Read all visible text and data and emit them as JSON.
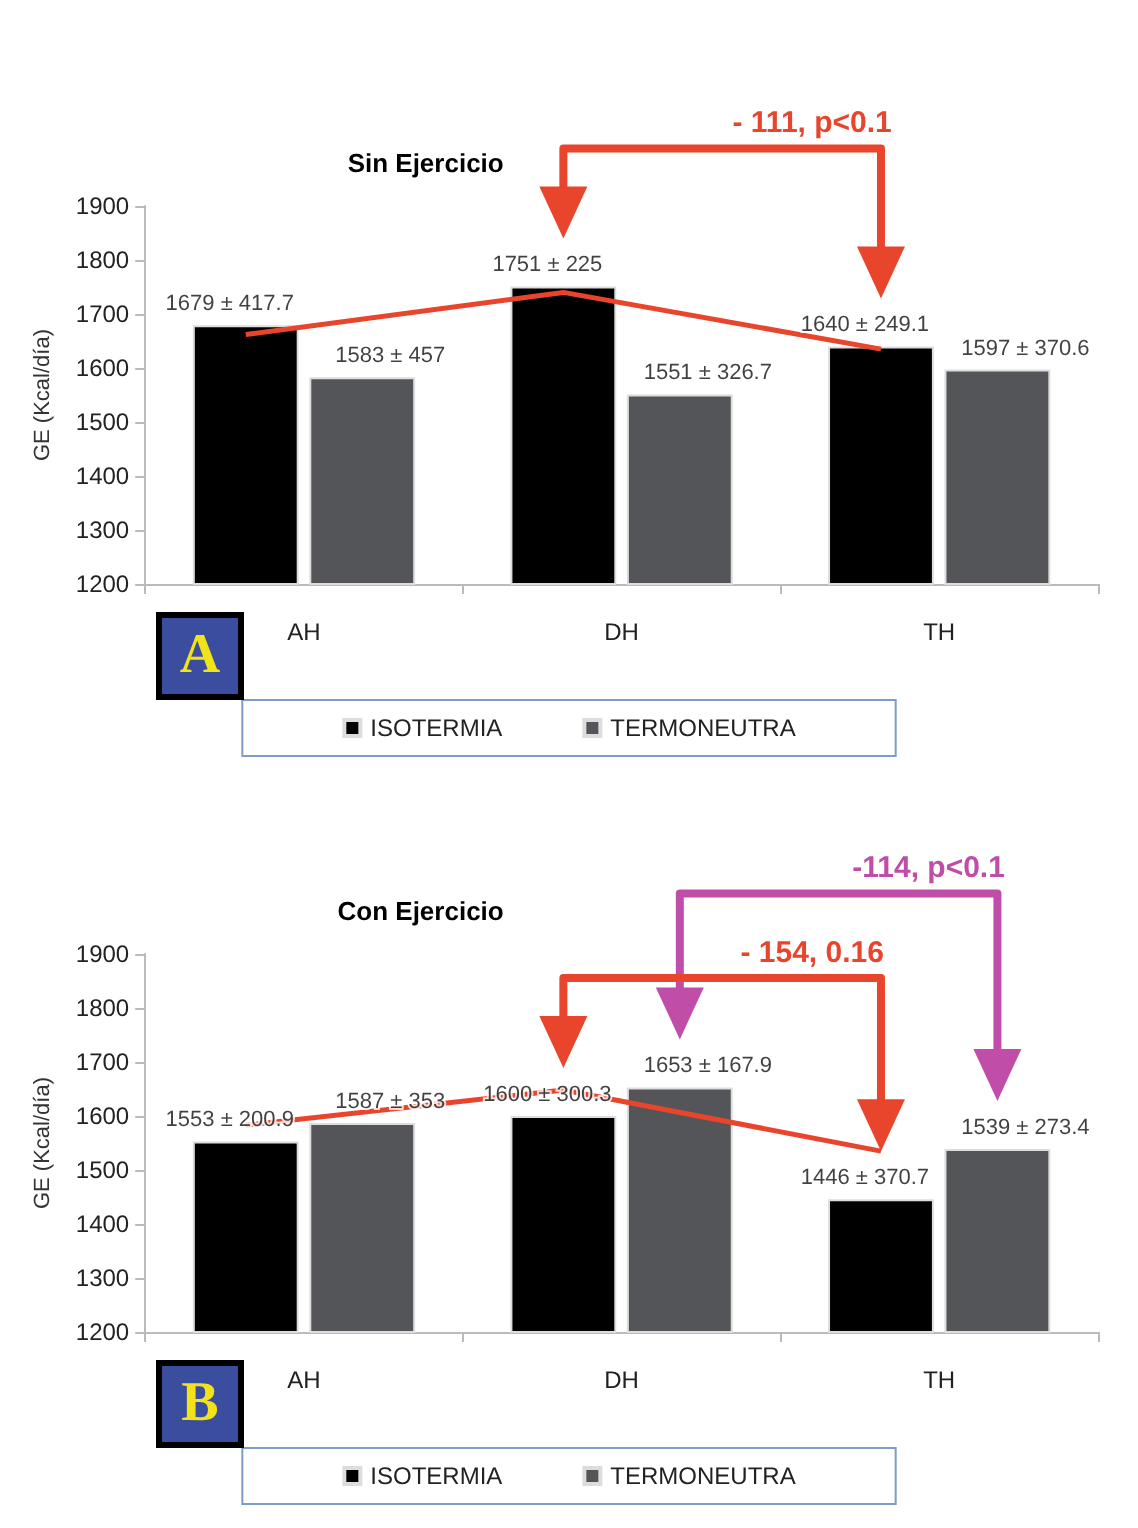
{
  "chart_data": [
    {
      "type": "bar",
      "title": "Sin Ejercicio",
      "ylabel": "GE (Kcal/día)",
      "categories": [
        "AH",
        "DH",
        "TH"
      ],
      "ylim": [
        1200,
        1900
      ],
      "yticks": [
        1200,
        1300,
        1400,
        1500,
        1600,
        1700,
        1800,
        1900
      ],
      "grid": false,
      "legend": "bottom",
      "annotations": [
        "A",
        "- 111, p<0.1"
      ],
      "series": [
        {
          "name": "ISOTERMIA",
          "color": "#000000",
          "values": [
            1679,
            1751,
            1640
          ],
          "value_labels": [
            "1679 ± 417.7",
            "1751 ± 225",
            "1640 ± 249.1"
          ]
        },
        {
          "name": "TERMONEUTRA",
          "color": "#545558",
          "values": [
            1583,
            1551,
            1597
          ],
          "value_labels": [
            "1583 ± 457",
            "1551 ± 326.7",
            "1597 ± 370.6"
          ]
        },
        {
          "type": "line",
          "color": "#e8452c",
          "values": [
            1662,
            1740,
            1635
          ],
          "marker": "none"
        }
      ]
    },
    {
      "type": "bar",
      "title": "Con Ejercicio",
      "ylabel": "GE (Kcal/día)",
      "categories": [
        "AH",
        "DH",
        "TH"
      ],
      "ylim": [
        1200,
        1900
      ],
      "yticks": [
        1200,
        1300,
        1400,
        1500,
        1600,
        1700,
        1800,
        1900
      ],
      "grid": false,
      "legend": "bottom",
      "annotations": [
        "B",
        "-114, p<0.1",
        "- 154, 0.16"
      ],
      "series": [
        {
          "name": "ISOTERMIA",
          "color": "#000000",
          "values": [
            1553,
            1600,
            1446
          ],
          "value_labels": [
            "1553 ± 200.9",
            "1600 ± 300.3",
            "1446 ± 370.7"
          ]
        },
        {
          "name": "TERMONEUTRA",
          "color": "#545558",
          "values": [
            1587,
            1653,
            1539
          ],
          "value_labels": [
            "1587 ± 353",
            "1653 ± 167.9",
            "1539 ± 273.4"
          ]
        },
        {
          "type": "line",
          "color": "#e8452c",
          "values": [
            1583,
            1648,
            1535
          ],
          "marker": "none"
        }
      ]
    }
  ]
}
